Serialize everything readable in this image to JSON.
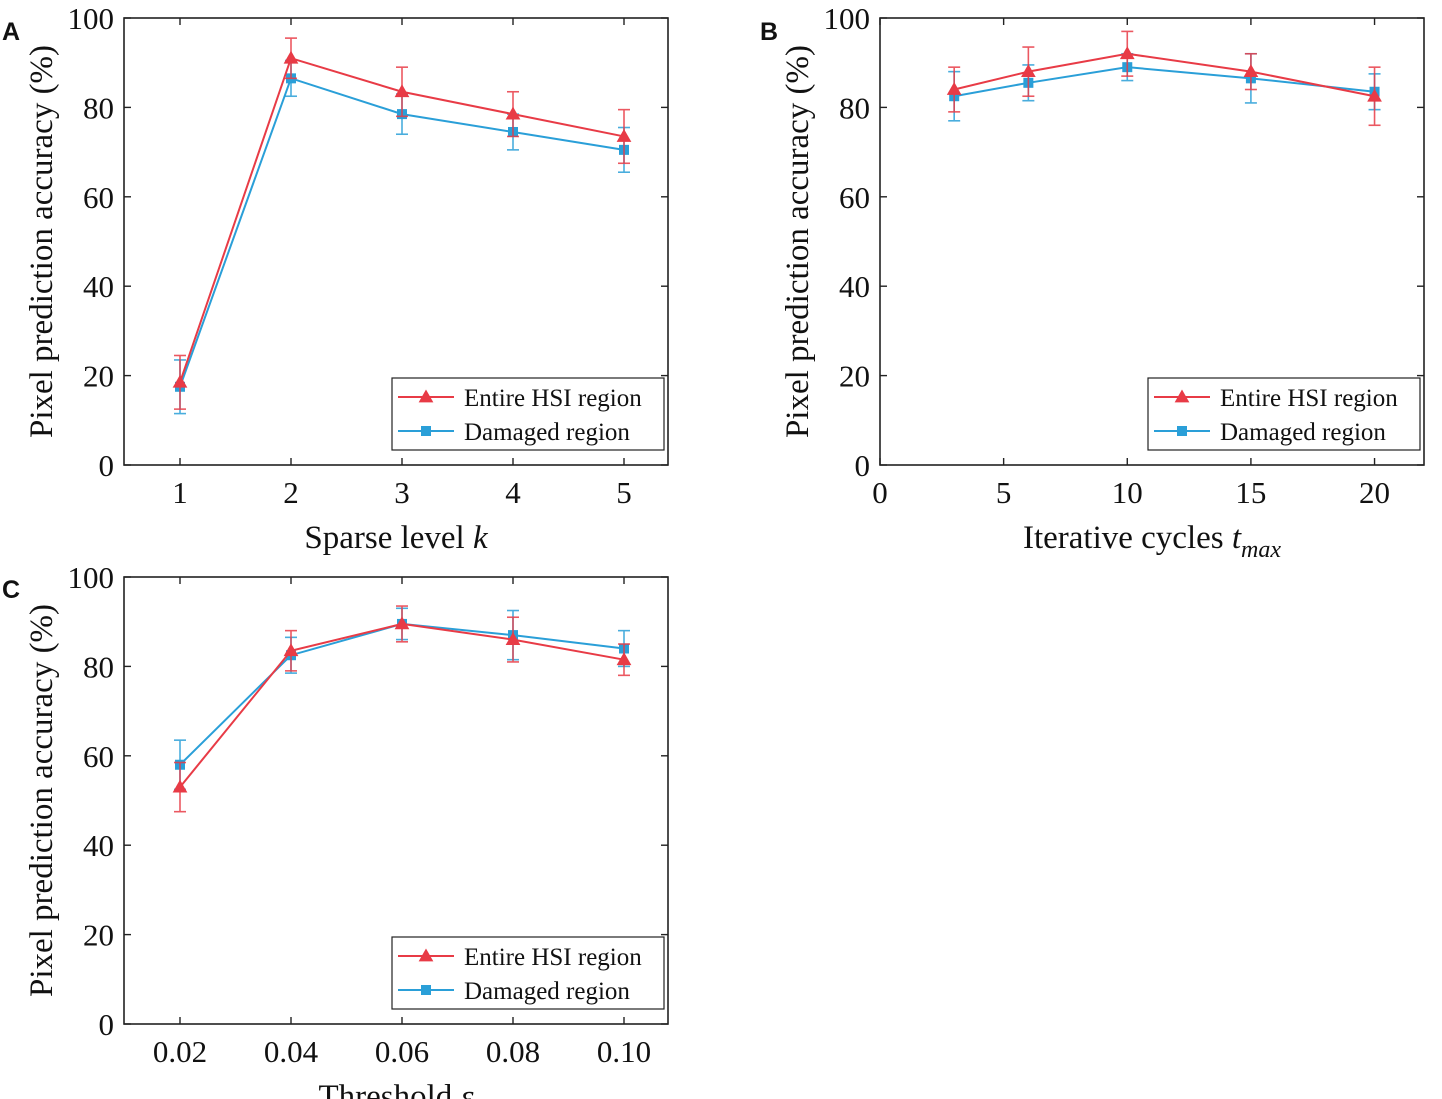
{
  "colors": {
    "entire": "#e83b46",
    "damaged": "#2a9fd8",
    "axis": "#222222"
  },
  "chart_data": [
    {
      "panel": "A",
      "type": "line",
      "x_kind": "categorical",
      "categories": [
        "1",
        "2",
        "3",
        "4",
        "5"
      ],
      "xlabel": "Sparse level",
      "xlabel_var": "k",
      "xlabel_sub": "",
      "ylabel": "Pixel prediction accuracy (%)",
      "ylim": [
        0,
        100
      ],
      "yticks": [
        "0",
        "20",
        "40",
        "60",
        "80",
        "100"
      ],
      "legend_position": "bottom-right",
      "series": [
        {
          "name": "Entire HSI region",
          "marker": "triangle",
          "values": [
            18.5,
            91,
            83.5,
            78.5,
            73.5
          ],
          "errors": [
            6,
            4.5,
            5.5,
            5,
            6
          ]
        },
        {
          "name": "Damaged region",
          "marker": "square",
          "values": [
            17.5,
            86.5,
            78.5,
            74.5,
            70.5
          ],
          "errors": [
            6,
            4,
            4.5,
            4,
            5
          ]
        }
      ]
    },
    {
      "panel": "B",
      "type": "line",
      "x_kind": "numeric",
      "x": [
        3,
        6,
        10,
        15,
        20
      ],
      "xlim": [
        0,
        22
      ],
      "xticks": [
        "0",
        "5",
        "10",
        "15",
        "20"
      ],
      "xlabel": "Iterative cycles",
      "xlabel_var": "t",
      "xlabel_sub": "max",
      "ylabel": "Pixel prediction accuracy (%)",
      "ylim": [
        0,
        100
      ],
      "yticks": [
        "0",
        "20",
        "40",
        "60",
        "80",
        "100"
      ],
      "legend_position": "bottom-right",
      "series": [
        {
          "name": "Entire HSI region",
          "marker": "triangle",
          "values": [
            84,
            88,
            92,
            88,
            82.5
          ],
          "errors": [
            5,
            5.5,
            5,
            4,
            6.5
          ]
        },
        {
          "name": "Damaged region",
          "marker": "square",
          "values": [
            82.5,
            85.5,
            89,
            86.5,
            83.5
          ],
          "errors": [
            5.5,
            4,
            3,
            5.5,
            4
          ]
        }
      ]
    },
    {
      "panel": "C",
      "type": "line",
      "x_kind": "categorical",
      "categories": [
        "0.02",
        "0.04",
        "0.06",
        "0.08",
        "0.10"
      ],
      "xlabel": "Threshold",
      "xlabel_var": "ε",
      "xlabel_sub": "",
      "ylabel": "Pixel prediction accuracy (%)",
      "ylim": [
        0,
        100
      ],
      "yticks": [
        "0",
        "20",
        "40",
        "60",
        "80",
        "100"
      ],
      "legend_position": "bottom-right",
      "series": [
        {
          "name": "Entire HSI region",
          "marker": "triangle",
          "values": [
            53,
            83.5,
            89.5,
            86,
            81.5
          ],
          "errors": [
            5.5,
            4.5,
            4,
            5,
            3.5
          ]
        },
        {
          "name": "Damaged region",
          "marker": "square",
          "values": [
            58,
            82.5,
            89.5,
            87,
            84
          ],
          "errors": [
            5.5,
            4,
            3.5,
            5.5,
            4
          ]
        }
      ]
    }
  ]
}
